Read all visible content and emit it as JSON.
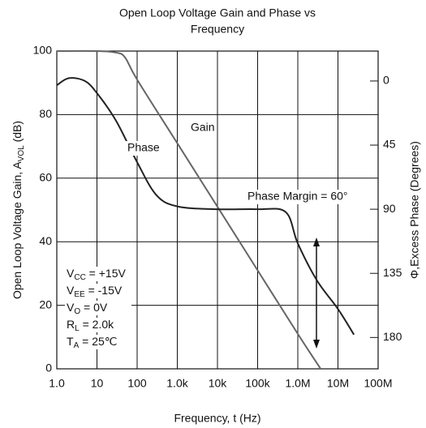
{
  "chart_data": {
    "type": "line",
    "title": [
      "Open Loop Voltage Gain and Phase vs",
      "Frequency"
    ],
    "xlabel": "Frequency, t (Hz)",
    "ylabel": {
      "text": "Open Loop Voltage Gain, A",
      "sub": "VOL",
      "rest": " (dB)"
    },
    "y2label": "Φ,Excess Phase (Degrees)",
    "xscale": "log",
    "xlim": [
      1,
      100000000
    ],
    "xticks": [
      {
        "value": 1,
        "label": "1.0"
      },
      10,
      100,
      {
        "value": 1000,
        "label": "1.0k"
      },
      {
        "value": 10000,
        "label": "10k"
      },
      {
        "value": 100000,
        "label": "100k"
      },
      {
        "value": 1000000,
        "label": "1.0M"
      },
      {
        "value": 10000000,
        "label": "10M"
      },
      {
        "value": 100000000,
        "label": "100M"
      }
    ],
    "ylim": [
      0,
      100
    ],
    "yticks": [
      0,
      20,
      40,
      60,
      80,
      100
    ],
    "y2lim": [
      202,
      -21
    ],
    "y2ticks": [
      0,
      45,
      90,
      135,
      180
    ],
    "grid": true,
    "series": [
      {
        "name": "Gain",
        "color": "#666666",
        "axis": "y",
        "x": [
          1,
          10,
          30,
          50,
          100,
          1000,
          10000,
          100000,
          1000000,
          3700000
        ],
        "values": [
          100,
          100,
          99.5,
          98,
          91,
          71,
          51,
          31,
          11,
          0
        ]
      },
      {
        "name": "Phase",
        "color": "#222222",
        "axis": "y2",
        "x": [
          1,
          2,
          5,
          10,
          30,
          100,
          300,
          1000,
          10000,
          100000,
          500000,
          1000000,
          3000000,
          10000000,
          25000000
        ],
        "values": [
          3,
          -2,
          0,
          8.5,
          28,
          57,
          80,
          88,
          90,
          90,
          92,
          114,
          140,
          160,
          178
        ]
      }
    ],
    "annotations": [
      {
        "text": "Gain"
      },
      {
        "text": "Phase"
      },
      {
        "text": "Phase Margin = 60°"
      }
    ],
    "conditions": [
      {
        "symbol": "V",
        "sub": "CC",
        "rest": " = +15V"
      },
      {
        "symbol": "V",
        "sub": "EE",
        "rest": " = -15V"
      },
      {
        "symbol": "V",
        "sub": "O",
        "rest": " = 0V"
      },
      {
        "symbol": "R",
        "sub": "L",
        "rest": " = 2.0k"
      },
      {
        "symbol": "T",
        "sub": "A",
        "rest": " = 25℃"
      }
    ]
  }
}
